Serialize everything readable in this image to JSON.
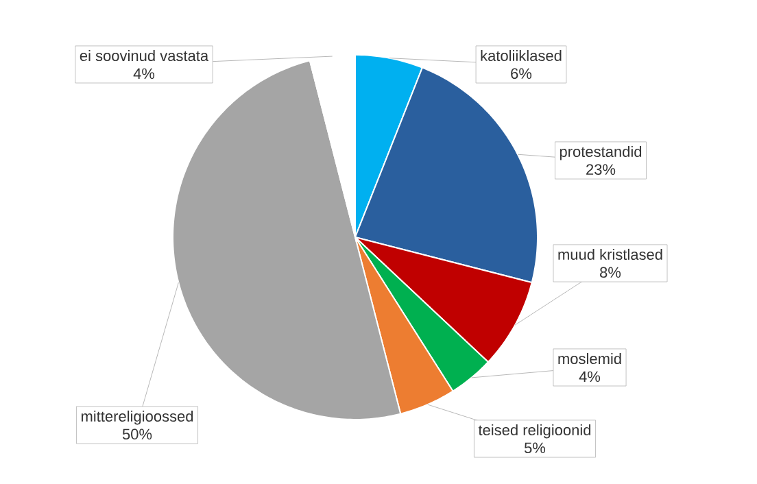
{
  "chart_data": {
    "type": "pie",
    "categories": [
      "katoliiklased",
      "protestandid",
      "muud kristlased",
      "moslemid",
      "teised religioonid",
      "mittereligioossed",
      "ei soovinud vastata"
    ],
    "values": [
      6,
      23,
      8,
      4,
      5,
      50,
      4
    ],
    "colors": [
      "#00b0f0",
      "#2a5f9e",
      "#c00000",
      "#00b050",
      "#ed7d31",
      "#a5a5a5",
      "#ffffff"
    ],
    "value_labels": [
      "6%",
      "23%",
      "8%",
      "4%",
      "5%",
      "50%",
      "4%"
    ]
  }
}
